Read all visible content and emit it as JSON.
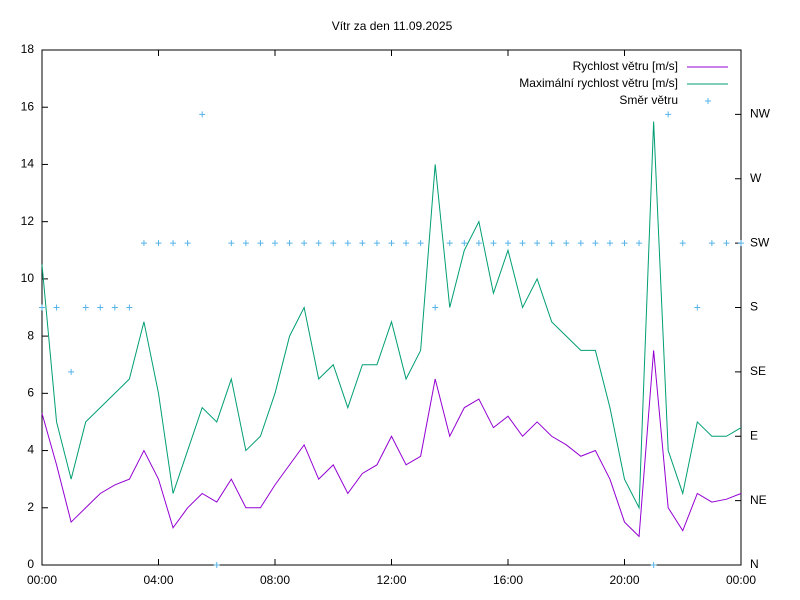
{
  "chart_data": {
    "type": "line",
    "title": "Vítr za den 11.09.2025",
    "x": [
      0,
      0.5,
      1,
      1.5,
      2,
      2.5,
      3,
      3.5,
      4,
      4.5,
      5,
      5.5,
      6,
      6.5,
      7,
      7.5,
      8,
      8.5,
      9,
      9.5,
      10,
      10.5,
      11,
      11.5,
      12,
      12.5,
      13,
      13.5,
      14,
      14.5,
      15,
      15.5,
      16,
      16.5,
      17,
      17.5,
      18,
      18.5,
      19,
      19.5,
      20,
      20.5,
      21,
      21.5,
      22,
      22.5,
      23,
      23.5,
      24
    ],
    "series": [
      {
        "name": "Rychlost větru [m/s]",
        "color": "#9400d3",
        "style": "line",
        "values": [
          5.3,
          3.5,
          1.5,
          2.0,
          2.5,
          2.8,
          3.0,
          4.0,
          3.0,
          1.3,
          2.0,
          2.5,
          2.2,
          3.0,
          2.0,
          2.0,
          2.8,
          3.5,
          4.2,
          3.0,
          3.5,
          2.5,
          3.2,
          3.5,
          4.5,
          3.5,
          3.8,
          6.5,
          4.5,
          5.5,
          5.8,
          4.8,
          5.2,
          4.5,
          5.0,
          4.5,
          4.2,
          3.8,
          4.0,
          3.0,
          1.5,
          1.0,
          7.5,
          2.0,
          1.2,
          2.5,
          2.2,
          2.3,
          2.5
        ]
      },
      {
        "name": "Maximální rychlost větru [m/s]",
        "color": "#009e73",
        "style": "line",
        "values": [
          10.5,
          5.0,
          3.0,
          5.0,
          5.5,
          6.0,
          6.5,
          8.5,
          6.0,
          2.5,
          4.0,
          5.5,
          5.0,
          6.5,
          4.0,
          4.5,
          6.0,
          8.0,
          9.0,
          6.5,
          7.0,
          5.5,
          7.0,
          7.0,
          8.5,
          6.5,
          7.5,
          14.0,
          9.0,
          11.0,
          12.0,
          9.5,
          11.0,
          9.0,
          10.0,
          8.5,
          8.0,
          7.5,
          7.5,
          5.5,
          3.0,
          2.0,
          15.5,
          4.0,
          2.5,
          5.0,
          4.5,
          4.5,
          4.8
        ]
      },
      {
        "name": "Směr větru",
        "color": "#56b4e9",
        "style": "points",
        "axis": "y2",
        "values": [
          4,
          4,
          3,
          4,
          4,
          4,
          4,
          5,
          5,
          5,
          5,
          7,
          0,
          5,
          5,
          5,
          5,
          5,
          5,
          5,
          5,
          5,
          5,
          5,
          5,
          5,
          5,
          4,
          5,
          5,
          5,
          5,
          5,
          5,
          5,
          5,
          5,
          5,
          5,
          5,
          5,
          5,
          0,
          7,
          5,
          4,
          5,
          5,
          5
        ]
      }
    ],
    "xlim": [
      0,
      24
    ],
    "xticks": [
      {
        "value": 0,
        "label": "00:00"
      },
      {
        "value": 4,
        "label": "04:00"
      },
      {
        "value": 8,
        "label": "08:00"
      },
      {
        "value": 12,
        "label": "12:00"
      },
      {
        "value": 16,
        "label": "16:00"
      },
      {
        "value": 20,
        "label": "20:00"
      },
      {
        "value": 24,
        "label": "00:00"
      }
    ],
    "ylim": [
      0,
      18
    ],
    "yticks": [
      0,
      2,
      4,
      6,
      8,
      10,
      12,
      14,
      16,
      18
    ],
    "y2lim": [
      0,
      8
    ],
    "y2ticks": [
      {
        "value": 0,
        "label": "N"
      },
      {
        "value": 1,
        "label": "NE"
      },
      {
        "value": 2,
        "label": "E"
      },
      {
        "value": 3,
        "label": "SE"
      },
      {
        "value": 4,
        "label": "S"
      },
      {
        "value": 5,
        "label": "SW"
      },
      {
        "value": 6,
        "label": "W"
      },
      {
        "value": 7,
        "label": "NW"
      }
    ],
    "legend": "top-right"
  }
}
